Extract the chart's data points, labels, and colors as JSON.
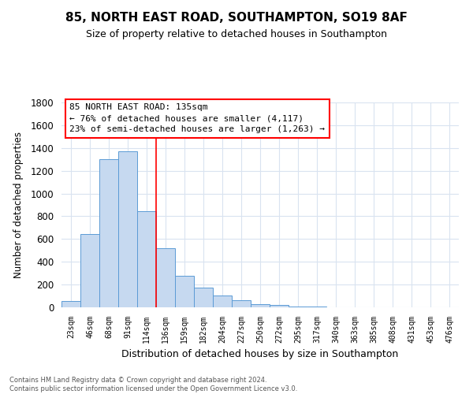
{
  "title": "85, NORTH EAST ROAD, SOUTHAMPTON, SO19 8AF",
  "subtitle": "Size of property relative to detached houses in Southampton",
  "xlabel": "Distribution of detached houses by size in Southampton",
  "ylabel": "Number of detached properties",
  "footer_line1": "Contains HM Land Registry data © Crown copyright and database right 2024.",
  "footer_line2": "Contains public sector information licensed under the Open Government Licence v3.0.",
  "bar_labels": [
    "23sqm",
    "46sqm",
    "68sqm",
    "91sqm",
    "114sqm",
    "136sqm",
    "159sqm",
    "182sqm",
    "204sqm",
    "227sqm",
    "250sqm",
    "272sqm",
    "295sqm",
    "317sqm",
    "340sqm",
    "363sqm",
    "385sqm",
    "408sqm",
    "431sqm",
    "453sqm",
    "476sqm"
  ],
  "bar_values": [
    55,
    645,
    1305,
    1370,
    845,
    520,
    280,
    175,
    105,
    65,
    30,
    20,
    10,
    5,
    2,
    1,
    1,
    0,
    0,
    0,
    0
  ],
  "bar_color": "#c6d9f0",
  "bar_edge_color": "#5b9bd5",
  "ylim": [
    0,
    1800
  ],
  "yticks": [
    0,
    200,
    400,
    600,
    800,
    1000,
    1200,
    1400,
    1600,
    1800
  ],
  "red_line_x": 4.5,
  "annotation_line1": "85 NORTH EAST ROAD: 135sqm",
  "annotation_line2": "← 76% of detached houses are smaller (4,117)",
  "annotation_line3": "23% of semi-detached houses are larger (1,263) →",
  "grid_color": "#d9e3f0",
  "background_color": "#ffffff",
  "title_fontsize": 11,
  "subtitle_fontsize": 9
}
